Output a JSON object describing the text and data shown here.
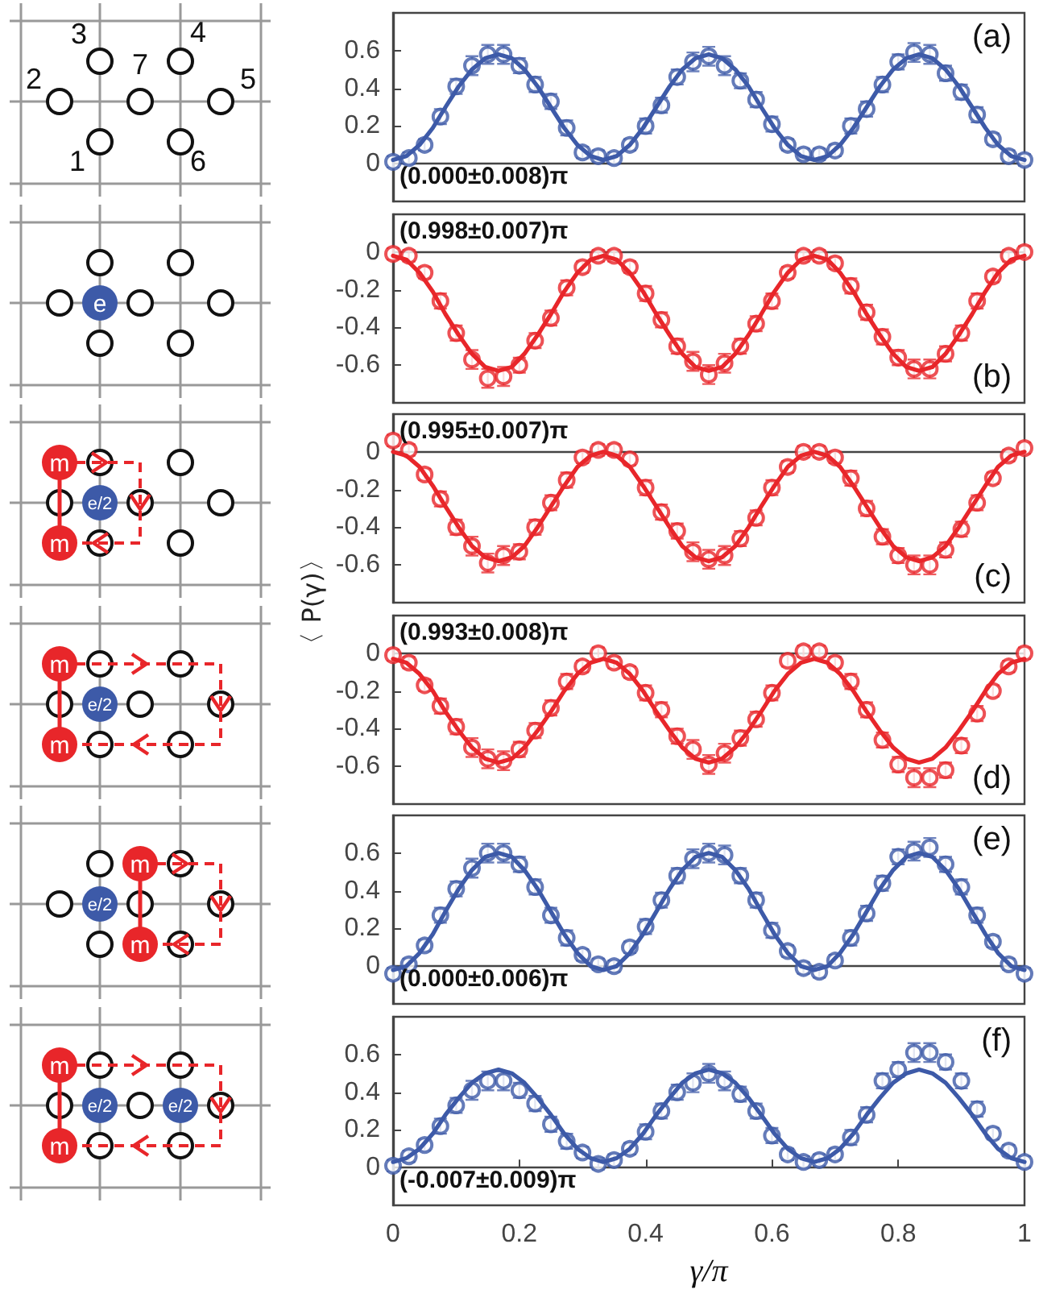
{
  "chart_data": [
    {
      "type": "scatter",
      "xlim": [
        0,
        1
      ],
      "ylim": [
        -0.2,
        0.8
      ],
      "yticks": [
        0,
        0.2,
        0.4,
        0.6
      ],
      "tick_labels": "y",
      "annotations": [
        "(a)",
        "(0.000±0.008)π",
        "1",
        "2",
        "3",
        "4",
        "5",
        "6",
        "7"
      ],
      "x": [
        0,
        0.025,
        0.05,
        0.075,
        0.1,
        0.125,
        0.15,
        0.175,
        0.2,
        0.225,
        0.25,
        0.275,
        0.3,
        0.325,
        0.35,
        0.375,
        0.4,
        0.425,
        0.45,
        0.475,
        0.5,
        0.525,
        0.55,
        0.575,
        0.6,
        0.625,
        0.65,
        0.675,
        0.7,
        0.725,
        0.75,
        0.775,
        0.8,
        0.825,
        0.85,
        0.875,
        0.9,
        0.925,
        0.95,
        0.975,
        1
      ],
      "series": [
        {
          "marker": "circle",
          "color": "#3d5aa8",
          "values": [
            0.01,
            0.03,
            0.1,
            0.25,
            0.41,
            0.52,
            0.58,
            0.58,
            0.52,
            0.42,
            0.33,
            0.19,
            0.06,
            0.04,
            0.03,
            0.1,
            0.2,
            0.31,
            0.46,
            0.54,
            0.57,
            0.52,
            0.44,
            0.34,
            0.21,
            0.1,
            0.05,
            0.05,
            0.07,
            0.2,
            0.29,
            0.42,
            0.54,
            0.59,
            0.58,
            0.48,
            0.38,
            0.26,
            0.13,
            0.04,
            0.02
          ],
          "errors": [
            0.03,
            0.03,
            0.03,
            0.04,
            0.04,
            0.05,
            0.05,
            0.05,
            0.04,
            0.04,
            0.04,
            0.04,
            0.03,
            0.03,
            0.03,
            0.03,
            0.04,
            0.04,
            0.04,
            0.05,
            0.05,
            0.05,
            0.04,
            0.04,
            0.04,
            0.03,
            0.03,
            0.03,
            0.03,
            0.04,
            0.04,
            0.04,
            0.04,
            0.05,
            0.05,
            0.04,
            0.04,
            0.04,
            0.03,
            0.03,
            0.03
          ]
        },
        {
          "type": "line",
          "marker": "none",
          "color": "#3d5aa8",
          "x": [
            0,
            0.021,
            0.042,
            0.063,
            0.083,
            0.104,
            0.125,
            0.146,
            0.167,
            0.188,
            0.208,
            0.229,
            0.25,
            0.271,
            0.292,
            0.313,
            0.333,
            0.354,
            0.375,
            0.396,
            0.417,
            0.438,
            0.458,
            0.479,
            0.5,
            0.521,
            0.542,
            0.563,
            0.583,
            0.604,
            0.625,
            0.646,
            0.667,
            0.688,
            0.708,
            0.729,
            0.75,
            0.771,
            0.792,
            0.813,
            0.833,
            0.854,
            0.875,
            0.896,
            0.917,
            0.938,
            0.958,
            0.979,
            1
          ],
          "values": [
            0.02,
            0.04,
            0.1,
            0.19,
            0.3,
            0.41,
            0.5,
            0.56,
            0.58,
            0.56,
            0.5,
            0.41,
            0.3,
            0.19,
            0.1,
            0.04,
            0.02,
            0.04,
            0.1,
            0.19,
            0.3,
            0.41,
            0.5,
            0.56,
            0.58,
            0.56,
            0.5,
            0.41,
            0.3,
            0.19,
            0.1,
            0.04,
            0.02,
            0.04,
            0.1,
            0.19,
            0.3,
            0.41,
            0.5,
            0.56,
            0.58,
            0.56,
            0.5,
            0.41,
            0.3,
            0.19,
            0.1,
            0.04,
            0.02
          ]
        }
      ]
    },
    {
      "type": "scatter",
      "xlim": [
        0,
        1
      ],
      "ylim": [
        -0.8,
        0.2
      ],
      "yticks": [
        -0.6,
        -0.4,
        -0.2,
        0
      ],
      "tick_labels": "y",
      "annotations": [
        "(b)",
        "(0.998±0.007)π",
        "e"
      ],
      "x": [
        0,
        0.025,
        0.05,
        0.075,
        0.1,
        0.125,
        0.15,
        0.175,
        0.2,
        0.225,
        0.25,
        0.275,
        0.3,
        0.325,
        0.35,
        0.375,
        0.4,
        0.425,
        0.45,
        0.475,
        0.5,
        0.525,
        0.55,
        0.575,
        0.6,
        0.625,
        0.65,
        0.675,
        0.7,
        0.725,
        0.75,
        0.775,
        0.8,
        0.825,
        0.85,
        0.875,
        0.9,
        0.925,
        0.95,
        0.975,
        1
      ],
      "series": [
        {
          "marker": "circle",
          "color": "#e8262a",
          "values": [
            -0.01,
            -0.02,
            -0.11,
            -0.26,
            -0.43,
            -0.57,
            -0.67,
            -0.66,
            -0.6,
            -0.47,
            -0.35,
            -0.19,
            -0.08,
            -0.02,
            -0.02,
            -0.08,
            -0.22,
            -0.36,
            -0.5,
            -0.58,
            -0.65,
            -0.59,
            -0.5,
            -0.38,
            -0.26,
            -0.11,
            -0.02,
            -0.02,
            -0.06,
            -0.18,
            -0.32,
            -0.45,
            -0.56,
            -0.62,
            -0.62,
            -0.54,
            -0.43,
            -0.26,
            -0.13,
            -0.02,
            0.0
          ],
          "errors": [
            0.03,
            0.03,
            0.03,
            0.04,
            0.04,
            0.05,
            0.05,
            0.05,
            0.04,
            0.04,
            0.04,
            0.04,
            0.03,
            0.03,
            0.03,
            0.03,
            0.04,
            0.04,
            0.04,
            0.05,
            0.05,
            0.05,
            0.04,
            0.04,
            0.04,
            0.03,
            0.03,
            0.03,
            0.03,
            0.04,
            0.04,
            0.04,
            0.04,
            0.05,
            0.05,
            0.04,
            0.04,
            0.04,
            0.03,
            0.03,
            0.03
          ]
        },
        {
          "type": "line",
          "marker": "none",
          "color": "#e8262a",
          "x": [
            0,
            0.021,
            0.042,
            0.063,
            0.083,
            0.104,
            0.125,
            0.146,
            0.167,
            0.188,
            0.208,
            0.229,
            0.25,
            0.271,
            0.292,
            0.313,
            0.333,
            0.354,
            0.375,
            0.396,
            0.417,
            0.438,
            0.458,
            0.479,
            0.5,
            0.521,
            0.542,
            0.563,
            0.583,
            0.604,
            0.625,
            0.646,
            0.667,
            0.688,
            0.708,
            0.729,
            0.75,
            0.771,
            0.792,
            0.813,
            0.833,
            0.854,
            0.875,
            0.896,
            0.917,
            0.938,
            0.958,
            0.979,
            1
          ],
          "values": [
            -0.02,
            -0.04,
            -0.11,
            -0.21,
            -0.33,
            -0.44,
            -0.54,
            -0.61,
            -0.63,
            -0.61,
            -0.54,
            -0.44,
            -0.33,
            -0.21,
            -0.11,
            -0.04,
            -0.02,
            -0.04,
            -0.11,
            -0.21,
            -0.33,
            -0.44,
            -0.54,
            -0.61,
            -0.63,
            -0.61,
            -0.54,
            -0.44,
            -0.33,
            -0.21,
            -0.11,
            -0.04,
            -0.02,
            -0.04,
            -0.11,
            -0.21,
            -0.33,
            -0.44,
            -0.54,
            -0.61,
            -0.63,
            -0.61,
            -0.54,
            -0.44,
            -0.33,
            -0.21,
            -0.11,
            -0.04,
            -0.02
          ]
        }
      ]
    },
    {
      "type": "scatter",
      "xlim": [
        0,
        1
      ],
      "ylim": [
        -0.8,
        0.2
      ],
      "yticks": [
        -0.6,
        -0.4,
        -0.2,
        0
      ],
      "tick_labels": "y",
      "ylabel": "〈 P(γ)〉",
      "annotations": [
        "(c)",
        "(0.995±0.007)π",
        "m",
        "m",
        "e/2"
      ],
      "x": [
        0,
        0.025,
        0.05,
        0.075,
        0.1,
        0.125,
        0.15,
        0.175,
        0.2,
        0.225,
        0.25,
        0.275,
        0.3,
        0.325,
        0.35,
        0.375,
        0.4,
        0.425,
        0.45,
        0.475,
        0.5,
        0.525,
        0.55,
        0.575,
        0.6,
        0.625,
        0.65,
        0.675,
        0.7,
        0.725,
        0.75,
        0.775,
        0.8,
        0.825,
        0.85,
        0.875,
        0.9,
        0.925,
        0.95,
        0.975,
        1
      ],
      "series": [
        {
          "marker": "circle",
          "color": "#e8262a",
          "values": [
            0.06,
            0.01,
            -0.12,
            -0.25,
            -0.4,
            -0.5,
            -0.59,
            -0.55,
            -0.53,
            -0.4,
            -0.27,
            -0.15,
            -0.03,
            0.01,
            0.01,
            -0.04,
            -0.19,
            -0.32,
            -0.42,
            -0.53,
            -0.57,
            -0.55,
            -0.46,
            -0.35,
            -0.19,
            -0.08,
            0.0,
            0.0,
            -0.03,
            -0.14,
            -0.3,
            -0.45,
            -0.55,
            -0.6,
            -0.6,
            -0.52,
            -0.41,
            -0.27,
            -0.14,
            -0.02,
            0.02
          ],
          "errors": [
            0.03,
            0.03,
            0.03,
            0.04,
            0.04,
            0.05,
            0.05,
            0.05,
            0.04,
            0.04,
            0.04,
            0.04,
            0.03,
            0.03,
            0.03,
            0.03,
            0.04,
            0.04,
            0.04,
            0.05,
            0.05,
            0.05,
            0.04,
            0.04,
            0.04,
            0.03,
            0.03,
            0.03,
            0.03,
            0.04,
            0.04,
            0.04,
            0.04,
            0.05,
            0.05,
            0.04,
            0.04,
            0.04,
            0.03,
            0.03,
            0.03
          ]
        },
        {
          "type": "line",
          "marker": "none",
          "color": "#e8262a",
          "x": [
            0,
            0.021,
            0.042,
            0.063,
            0.083,
            0.104,
            0.125,
            0.146,
            0.167,
            0.188,
            0.208,
            0.229,
            0.25,
            0.271,
            0.292,
            0.313,
            0.333,
            0.354,
            0.375,
            0.396,
            0.417,
            0.438,
            0.458,
            0.479,
            0.5,
            0.521,
            0.542,
            0.563,
            0.583,
            0.604,
            0.625,
            0.646,
            0.667,
            0.688,
            0.708,
            0.729,
            0.75,
            0.771,
            0.792,
            0.813,
            0.833,
            0.854,
            0.875,
            0.896,
            0.917,
            0.938,
            0.958,
            0.979,
            1
          ],
          "values": [
            0.0,
            -0.02,
            -0.08,
            -0.18,
            -0.29,
            -0.4,
            -0.5,
            -0.56,
            -0.58,
            -0.56,
            -0.5,
            -0.4,
            -0.29,
            -0.18,
            -0.08,
            -0.02,
            0.0,
            -0.02,
            -0.08,
            -0.18,
            -0.29,
            -0.4,
            -0.5,
            -0.56,
            -0.58,
            -0.56,
            -0.5,
            -0.4,
            -0.29,
            -0.18,
            -0.08,
            -0.02,
            0.0,
            -0.02,
            -0.08,
            -0.18,
            -0.29,
            -0.4,
            -0.5,
            -0.56,
            -0.58,
            -0.56,
            -0.5,
            -0.4,
            -0.29,
            -0.18,
            -0.08,
            -0.02,
            0.0
          ]
        }
      ]
    },
    {
      "type": "scatter",
      "xlim": [
        0,
        1
      ],
      "ylim": [
        -0.8,
        0.2
      ],
      "yticks": [
        -0.6,
        -0.4,
        -0.2,
        0
      ],
      "tick_labels": "y",
      "annotations": [
        "(d)",
        "(0.993±0.008)π",
        "m",
        "m",
        "e/2"
      ],
      "x": [
        0,
        0.025,
        0.05,
        0.075,
        0.1,
        0.125,
        0.15,
        0.175,
        0.2,
        0.225,
        0.25,
        0.275,
        0.3,
        0.325,
        0.35,
        0.375,
        0.4,
        0.425,
        0.45,
        0.475,
        0.5,
        0.525,
        0.55,
        0.575,
        0.6,
        0.625,
        0.65,
        0.675,
        0.7,
        0.725,
        0.75,
        0.775,
        0.8,
        0.825,
        0.85,
        0.875,
        0.9,
        0.925,
        0.95,
        0.975,
        1
      ],
      "series": [
        {
          "marker": "circle",
          "color": "#e8262a",
          "values": [
            -0.01,
            -0.05,
            -0.17,
            -0.28,
            -0.39,
            -0.5,
            -0.56,
            -0.57,
            -0.51,
            -0.41,
            -0.29,
            -0.15,
            -0.07,
            0.0,
            -0.05,
            -0.1,
            -0.21,
            -0.3,
            -0.44,
            -0.51,
            -0.59,
            -0.53,
            -0.45,
            -0.35,
            -0.21,
            -0.04,
            0.01,
            0.01,
            -0.05,
            -0.15,
            -0.3,
            -0.46,
            -0.59,
            -0.66,
            -0.66,
            -0.62,
            -0.49,
            -0.32,
            -0.2,
            -0.07,
            0.0
          ],
          "errors": [
            0.03,
            0.03,
            0.03,
            0.04,
            0.04,
            0.05,
            0.05,
            0.05,
            0.04,
            0.04,
            0.04,
            0.04,
            0.03,
            0.03,
            0.03,
            0.03,
            0.04,
            0.04,
            0.04,
            0.05,
            0.05,
            0.05,
            0.04,
            0.04,
            0.04,
            0.03,
            0.03,
            0.03,
            0.03,
            0.04,
            0.04,
            0.04,
            0.04,
            0.05,
            0.05,
            0.04,
            0.04,
            0.04,
            0.03,
            0.03,
            0.03
          ]
        },
        {
          "type": "line",
          "marker": "none",
          "color": "#e8262a",
          "x": [
            0,
            0.021,
            0.042,
            0.063,
            0.083,
            0.104,
            0.125,
            0.146,
            0.167,
            0.188,
            0.208,
            0.229,
            0.25,
            0.271,
            0.292,
            0.313,
            0.333,
            0.354,
            0.375,
            0.396,
            0.417,
            0.438,
            0.458,
            0.479,
            0.5,
            0.521,
            0.542,
            0.563,
            0.583,
            0.604,
            0.625,
            0.646,
            0.667,
            0.688,
            0.708,
            0.729,
            0.75,
            0.771,
            0.792,
            0.813,
            0.833,
            0.854,
            0.875,
            0.896,
            0.917,
            0.938,
            0.958,
            0.979,
            1
          ],
          "values": [
            -0.03,
            -0.05,
            -0.11,
            -0.2,
            -0.31,
            -0.41,
            -0.5,
            -0.56,
            -0.58,
            -0.56,
            -0.5,
            -0.41,
            -0.31,
            -0.2,
            -0.11,
            -0.05,
            -0.03,
            -0.05,
            -0.11,
            -0.2,
            -0.31,
            -0.41,
            -0.5,
            -0.56,
            -0.58,
            -0.56,
            -0.5,
            -0.41,
            -0.31,
            -0.2,
            -0.11,
            -0.05,
            -0.03,
            -0.05,
            -0.11,
            -0.2,
            -0.31,
            -0.41,
            -0.5,
            -0.56,
            -0.58,
            -0.56,
            -0.5,
            -0.41,
            -0.31,
            -0.2,
            -0.11,
            -0.05,
            -0.03
          ]
        }
      ]
    },
    {
      "type": "scatter",
      "xlim": [
        0,
        1
      ],
      "ylim": [
        -0.2,
        0.8
      ],
      "yticks": [
        0,
        0.2,
        0.4,
        0.6
      ],
      "tick_labels": "y",
      "annotations": [
        "(e)",
        "(0.000±0.006)π",
        "m",
        "m",
        "e/2"
      ],
      "x": [
        0,
        0.025,
        0.05,
        0.075,
        0.1,
        0.125,
        0.15,
        0.175,
        0.2,
        0.225,
        0.25,
        0.275,
        0.3,
        0.325,
        0.35,
        0.375,
        0.4,
        0.425,
        0.45,
        0.475,
        0.5,
        0.525,
        0.55,
        0.575,
        0.6,
        0.625,
        0.65,
        0.675,
        0.7,
        0.725,
        0.75,
        0.775,
        0.8,
        0.825,
        0.85,
        0.875,
        0.9,
        0.925,
        0.95,
        0.975,
        1
      ],
      "series": [
        {
          "marker": "circle",
          "color": "#3d5aa8",
          "values": [
            -0.04,
            0.01,
            0.11,
            0.27,
            0.41,
            0.52,
            0.6,
            0.6,
            0.54,
            0.42,
            0.27,
            0.15,
            0.06,
            0.01,
            0.0,
            0.1,
            0.21,
            0.35,
            0.48,
            0.57,
            0.6,
            0.59,
            0.48,
            0.35,
            0.19,
            0.08,
            -0.01,
            -0.03,
            0.03,
            0.15,
            0.28,
            0.44,
            0.58,
            0.61,
            0.63,
            0.54,
            0.42,
            0.27,
            0.13,
            0.01,
            -0.04
          ],
          "errors": [
            0.03,
            0.03,
            0.03,
            0.04,
            0.04,
            0.05,
            0.05,
            0.05,
            0.04,
            0.04,
            0.04,
            0.04,
            0.03,
            0.03,
            0.03,
            0.03,
            0.04,
            0.04,
            0.04,
            0.05,
            0.05,
            0.05,
            0.04,
            0.04,
            0.04,
            0.03,
            0.03,
            0.03,
            0.03,
            0.04,
            0.04,
            0.04,
            0.04,
            0.05,
            0.05,
            0.04,
            0.04,
            0.04,
            0.03,
            0.03,
            0.03
          ]
        },
        {
          "type": "line",
          "marker": "none",
          "color": "#3d5aa8",
          "x": [
            0,
            0.021,
            0.042,
            0.063,
            0.083,
            0.104,
            0.125,
            0.146,
            0.167,
            0.188,
            0.208,
            0.229,
            0.25,
            0.271,
            0.292,
            0.313,
            0.333,
            0.354,
            0.375,
            0.396,
            0.417,
            0.438,
            0.458,
            0.479,
            0.5,
            0.521,
            0.542,
            0.563,
            0.583,
            0.604,
            0.625,
            0.646,
            0.667,
            0.688,
            0.708,
            0.729,
            0.75,
            0.771,
            0.792,
            0.813,
            0.833,
            0.854,
            0.875,
            0.896,
            0.917,
            0.938,
            0.958,
            0.979,
            1
          ],
          "values": [
            -0.02,
            0.0,
            0.07,
            0.17,
            0.29,
            0.41,
            0.51,
            0.58,
            0.6,
            0.58,
            0.51,
            0.41,
            0.29,
            0.17,
            0.07,
            0.0,
            -0.02,
            0.0,
            0.07,
            0.17,
            0.29,
            0.41,
            0.51,
            0.58,
            0.6,
            0.58,
            0.51,
            0.41,
            0.29,
            0.17,
            0.07,
            0.0,
            -0.02,
            0.0,
            0.07,
            0.17,
            0.29,
            0.41,
            0.51,
            0.58,
            0.6,
            0.58,
            0.51,
            0.41,
            0.29,
            0.17,
            0.07,
            0.0,
            -0.02
          ]
        }
      ]
    },
    {
      "type": "scatter",
      "xlim": [
        0,
        1
      ],
      "xticks": [
        0,
        0.2,
        0.4,
        0.6,
        0.8,
        1
      ],
      "ylim": [
        -0.2,
        0.8
      ],
      "yticks": [
        0,
        0.2,
        0.4,
        0.6
      ],
      "xlabel": "γ/π",
      "annotations": [
        "(f)",
        "(-0.007±0.009)π",
        "m",
        "m",
        "e/2",
        "e/2"
      ],
      "x": [
        0,
        0.025,
        0.05,
        0.075,
        0.1,
        0.125,
        0.15,
        0.175,
        0.2,
        0.225,
        0.25,
        0.275,
        0.3,
        0.325,
        0.35,
        0.375,
        0.4,
        0.425,
        0.45,
        0.475,
        0.5,
        0.525,
        0.55,
        0.575,
        0.6,
        0.625,
        0.65,
        0.675,
        0.7,
        0.725,
        0.75,
        0.775,
        0.8,
        0.825,
        0.85,
        0.875,
        0.9,
        0.925,
        0.95,
        0.975,
        1
      ],
      "series": [
        {
          "marker": "circle",
          "color": "#3d5aa8",
          "values": [
            0.01,
            0.06,
            0.12,
            0.22,
            0.33,
            0.41,
            0.46,
            0.46,
            0.41,
            0.34,
            0.23,
            0.14,
            0.08,
            0.02,
            0.04,
            0.1,
            0.19,
            0.3,
            0.4,
            0.45,
            0.5,
            0.46,
            0.39,
            0.3,
            0.17,
            0.07,
            0.03,
            0.04,
            0.07,
            0.16,
            0.28,
            0.46,
            0.52,
            0.61,
            0.61,
            0.56,
            0.46,
            0.31,
            0.18,
            0.09,
            0.03
          ],
          "errors": [
            0.03,
            0.03,
            0.03,
            0.04,
            0.04,
            0.05,
            0.05,
            0.05,
            0.04,
            0.04,
            0.04,
            0.04,
            0.03,
            0.03,
            0.03,
            0.03,
            0.04,
            0.04,
            0.04,
            0.05,
            0.05,
            0.05,
            0.04,
            0.04,
            0.04,
            0.03,
            0.03,
            0.03,
            0.03,
            0.04,
            0.04,
            0.04,
            0.04,
            0.05,
            0.05,
            0.04,
            0.04,
            0.04,
            0.03,
            0.03,
            0.03
          ]
        },
        {
          "type": "line",
          "marker": "none",
          "color": "#3d5aa8",
          "x": [
            0,
            0.021,
            0.042,
            0.063,
            0.083,
            0.104,
            0.125,
            0.146,
            0.167,
            0.188,
            0.208,
            0.229,
            0.25,
            0.271,
            0.292,
            0.313,
            0.333,
            0.354,
            0.375,
            0.396,
            0.417,
            0.438,
            0.458,
            0.479,
            0.5,
            0.521,
            0.542,
            0.563,
            0.583,
            0.604,
            0.625,
            0.646,
            0.667,
            0.688,
            0.708,
            0.729,
            0.75,
            0.771,
            0.792,
            0.813,
            0.833,
            0.854,
            0.875,
            0.896,
            0.917,
            0.938,
            0.958,
            0.979,
            1
          ],
          "values": [
            0.03,
            0.05,
            0.1,
            0.18,
            0.28,
            0.37,
            0.45,
            0.5,
            0.52,
            0.5,
            0.45,
            0.37,
            0.28,
            0.18,
            0.1,
            0.05,
            0.03,
            0.05,
            0.1,
            0.18,
            0.28,
            0.37,
            0.45,
            0.5,
            0.52,
            0.5,
            0.45,
            0.37,
            0.28,
            0.18,
            0.1,
            0.05,
            0.03,
            0.05,
            0.1,
            0.18,
            0.28,
            0.37,
            0.45,
            0.5,
            0.52,
            0.5,
            0.45,
            0.37,
            0.28,
            0.18,
            0.1,
            0.05,
            0.03
          ]
        }
      ]
    }
  ]
}
